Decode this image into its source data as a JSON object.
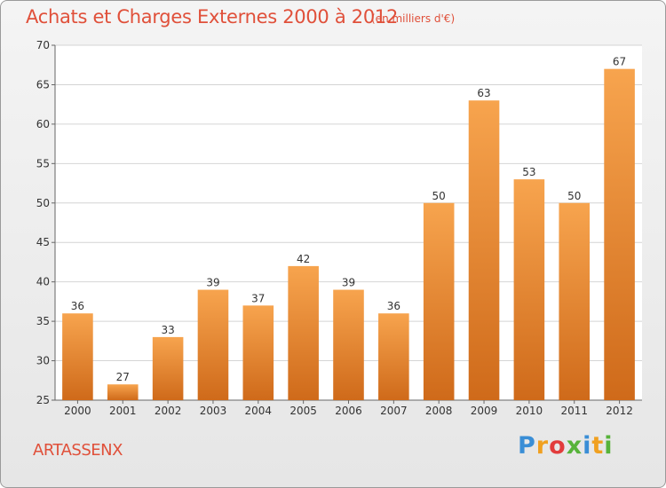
{
  "header": {
    "title": "Achats et Charges Externes 2000 à 2012",
    "subtitle": "(en milliers d'€)"
  },
  "footer": {
    "commune": "ARTASSENX",
    "logo_letters": [
      "P",
      "r",
      "o",
      "x",
      "i",
      "t",
      "i"
    ]
  },
  "colors": {
    "bar_light": "#f7a44e",
    "bar_dark": "#cf6a1a",
    "title": "#e0503a",
    "grid": "#d4d4d4"
  },
  "chart_data": {
    "type": "bar",
    "title": "Achats et Charges Externes 2000 à 2012",
    "xlabel": "",
    "ylabel": "",
    "categories": [
      "2000",
      "2001",
      "2002",
      "2003",
      "2004",
      "2005",
      "2006",
      "2007",
      "2008",
      "2009",
      "2010",
      "2011",
      "2012"
    ],
    "values": [
      36,
      27,
      33,
      39,
      37,
      42,
      39,
      36,
      50,
      63,
      53,
      50,
      67
    ],
    "ylim": [
      25,
      70
    ],
    "yticks": [
      25,
      30,
      35,
      40,
      45,
      50,
      55,
      60,
      65,
      70
    ],
    "grid": true
  }
}
